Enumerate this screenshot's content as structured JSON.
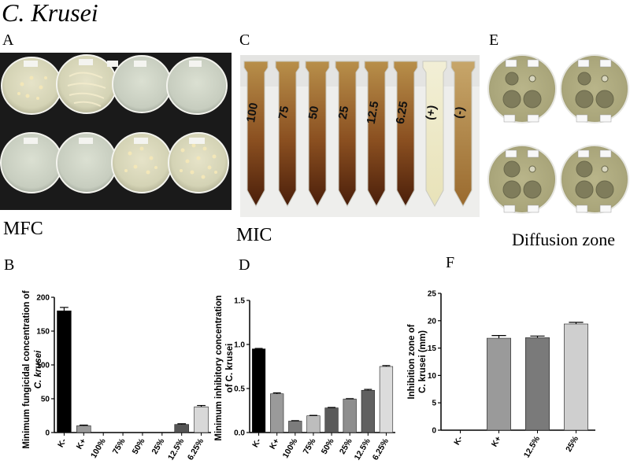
{
  "figure_title": "C. Krusei",
  "panels": {
    "A": {
      "letter": "A",
      "caption": "MFC"
    },
    "C": {
      "letter": "C",
      "caption": "MIC",
      "tube_labels": [
        "100",
        "75",
        "50",
        "25",
        "12.5",
        "6.25",
        "(+)",
        "(-)"
      ]
    },
    "E": {
      "letter": "E",
      "caption": "Diffusion zone"
    },
    "B": {
      "letter": "B"
    },
    "D": {
      "letter": "D"
    },
    "F": {
      "letter": "F"
    }
  },
  "chart_data": [
    {
      "id": "B",
      "type": "bar",
      "ylabel_line1": "Minimum fungicidal concentration of",
      "ylabel_line2": "C. krusei",
      "ylim": [
        0,
        200
      ],
      "yticks": [
        "0",
        "50",
        "100",
        "150",
        "200"
      ],
      "categories": [
        "K-",
        "K+",
        "100%",
        "75%",
        "50%",
        "25%",
        "12.5%",
        "6.25%"
      ],
      "values": [
        180,
        10,
        0,
        0,
        0,
        0,
        12,
        38
      ],
      "errors": [
        5,
        1,
        0,
        0,
        0,
        0,
        1,
        2
      ],
      "colors": [
        "#000000",
        "#9a9a9a",
        "#ffffff",
        "#ffffff",
        "#ffffff",
        "#ffffff",
        "#555555",
        "#d8d8d8"
      ],
      "grid": false
    },
    {
      "id": "D",
      "type": "bar",
      "ylabel_line1": "Minimum inhibitory concentration",
      "ylabel_line2": "of C. krusei",
      "ylim": [
        0,
        1.5
      ],
      "yticks": [
        "0.0",
        "0.5",
        "1.0",
        "1.5"
      ],
      "categories": [
        "K-",
        "K+",
        "100%",
        "75%",
        "50%",
        "25%",
        "12.5%",
        "6.25%"
      ],
      "values": [
        0.95,
        0.44,
        0.13,
        0.19,
        0.28,
        0.38,
        0.48,
        0.75
      ],
      "errors": [
        0.005,
        0.01,
        0.005,
        0.005,
        0.005,
        0.005,
        0.01,
        0.01
      ],
      "colors": [
        "#000000",
        "#9a9a9a",
        "#7c7c7c",
        "#bdbdbd",
        "#5a5a5a",
        "#8e8e8e",
        "#606060",
        "#dcdcdc"
      ],
      "grid": false
    },
    {
      "id": "F",
      "type": "bar",
      "ylabel_line1": "Inhibition zone of",
      "ylabel_line2": "C. krusei (mm)",
      "ylim": [
        0,
        25
      ],
      "yticks": [
        "0",
        "5",
        "10",
        "15",
        "20",
        "25"
      ],
      "categories": [
        "K-",
        "K+",
        "12.5%",
        "25%"
      ],
      "values": [
        0,
        16.8,
        16.9,
        19.4
      ],
      "errors": [
        0,
        0.5,
        0.3,
        0.3
      ],
      "colors": [
        "#000000",
        "#9a9a9a",
        "#7a7a7a",
        "#cfcfcf"
      ],
      "grid": false
    }
  ]
}
